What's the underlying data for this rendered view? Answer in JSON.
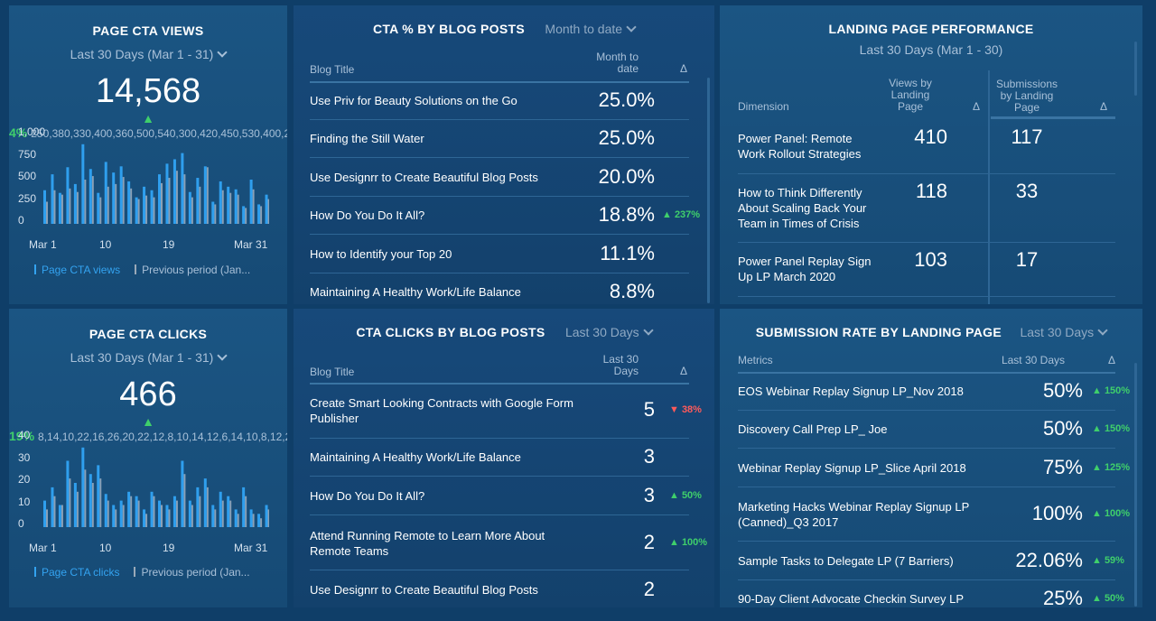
{
  "colors": {
    "bg": "#0f3e68",
    "panel": "#1b5583",
    "accent": "#33a3f0",
    "up": "#3fcf6b",
    "down": "#ff5a5a",
    "muted": "#a8c0d8"
  },
  "views": {
    "title": "PAGE CTA VIEWS",
    "period": "Last 30 Days (Mar 1 - 31)",
    "value": "14,568",
    "change": "▲ 4%",
    "previous": [
      250,
      380,
      330,
      400,
      360,
      500,
      540,
      300,
      420,
      450,
      530,
      400,
      280,
      320,
      300,
      460,
      520,
      600,
      560,
      300,
      420,
      640,
      220,
      380,
      350,
      330,
      180,
      390,
      200,
      280
    ],
    "y_ticks": [
      "1,000",
      "750",
      "500",
      "250",
      "0"
    ],
    "x_ticks": [
      "Mar 1",
      "10",
      "19",
      "Mar 31"
    ],
    "legend_current": "Page CTA views",
    "legend_previous": "Previous period (Jan...",
    "ymax": 1000,
    "current": [
      380,
      560,
      350,
      640,
      450,
      900,
      620,
      350,
      700,
      580,
      650,
      480,
      300,
      420,
      380,
      560,
      680,
      730,
      800,
      360,
      520,
      650,
      250,
      480,
      420,
      390,
      200,
      500,
      220,
      330
    ]
  },
  "clicks": {
    "title": "PAGE CTA CLICKS",
    "period": "Last 30 Days (Mar 1 - 31)",
    "value": "466",
    "change": "▲ 19%",
    "previous": [
      8,
      14,
      10,
      22,
      16,
      26,
      20,
      22,
      12,
      8,
      10,
      14,
      12,
      6,
      14,
      10,
      8,
      12,
      24,
      10,
      14,
      18,
      8,
      12,
      12,
      6,
      14,
      6,
      4,
      8
    ],
    "y_ticks": [
      "40",
      "30",
      "20",
      "10",
      "0"
    ],
    "x_ticks": [
      "Mar 1",
      "10",
      "19",
      "Mar 31"
    ],
    "legend_current": "Page CTA clicks",
    "legend_previous": "Previous period (Jan...",
    "ymax": 40,
    "current": [
      12,
      18,
      10,
      30,
      20,
      36,
      24,
      28,
      15,
      10,
      12,
      16,
      14,
      8,
      16,
      12,
      10,
      14,
      30,
      12,
      18,
      22,
      10,
      16,
      14,
      8,
      18,
      8,
      6,
      10
    ]
  },
  "cta_pct": {
    "title": "CTA % BY BLOG POSTS",
    "period": "Month to date",
    "col_title": "Blog Title",
    "col_value": "Month to date",
    "col_delta": "Δ",
    "rows": [
      {
        "title": "Use Priv for Beauty Solutions on the Go",
        "value": "25.0%",
        "delta": "",
        "dir": ""
      },
      {
        "title": "Finding the Still Water",
        "value": "25.0%",
        "delta": "",
        "dir": ""
      },
      {
        "title": "Use Designrr to Create Beautiful Blog Posts",
        "value": "20.0%",
        "delta": "",
        "dir": ""
      },
      {
        "title": "How Do You Do It All?",
        "value": "18.8%",
        "delta": "▲ 237%",
        "dir": "up"
      },
      {
        "title": "How to Identify your Top 20",
        "value": "11.1%",
        "delta": "",
        "dir": ""
      },
      {
        "title": "Maintaining A Healthy Work/Life Balance",
        "value": "8.8%",
        "delta": "",
        "dir": ""
      }
    ]
  },
  "cta_clicks": {
    "title": "CTA CLICKS BY BLOG POSTS",
    "period": "Last 30 Days",
    "col_title": "Blog Title",
    "col_value": "Last 30 Days",
    "col_delta": "Δ",
    "rows": [
      {
        "title": "Create Smart Looking Contracts with Google Form Publisher",
        "value": "5",
        "delta": "▼ 38%",
        "dir": "down"
      },
      {
        "title": "Maintaining A Healthy Work/Life Balance",
        "value": "3",
        "delta": "",
        "dir": ""
      },
      {
        "title": "How Do You Do It All?",
        "value": "3",
        "delta": "▲ 50%",
        "dir": "up"
      },
      {
        "title": "Attend Running Remote to Learn More About Remote Teams",
        "value": "2",
        "delta": "▲ 100%",
        "dir": "up"
      },
      {
        "title": "Use Designrr to Create Beautiful Blog Posts",
        "value": "2",
        "delta": "",
        "dir": ""
      }
    ]
  },
  "landing": {
    "title": "LANDING PAGE PERFORMANCE",
    "period": "Last 30 Days (Mar 1 - 30)",
    "col_dim": "Dimension",
    "col_views": "Views by Landing Page",
    "col_subs": "Submissions by Landing Page",
    "col_delta": "Δ",
    "rows": [
      {
        "title": "Power Panel: Remote Work Rollout Strategies",
        "views": "410",
        "subs": "117"
      },
      {
        "title": "How to Think Differently About Scaling Back Your Team in Times of Crisis",
        "views": "118",
        "subs": "33"
      },
      {
        "title": "Power Panel Replay Sign Up LP March 2020",
        "views": "103",
        "subs": "17"
      }
    ]
  },
  "subrate": {
    "title": "SUBMISSION RATE BY LANDING PAGE",
    "period": "Last 30 Days",
    "col_title": "Metrics",
    "col_value": "Last 30 Days",
    "col_delta": "Δ",
    "rows": [
      {
        "title": "EOS Webinar Replay Signup LP_Nov 2018",
        "value": "50%",
        "delta": "▲ 150%",
        "dir": "up"
      },
      {
        "title": "Discovery Call Prep LP_ Joe",
        "value": "50%",
        "delta": "▲ 150%",
        "dir": "up"
      },
      {
        "title": "Webinar Replay Signup LP_Slice April 2018",
        "value": "75%",
        "delta": "▲ 125%",
        "dir": "up"
      },
      {
        "title": "Marketing Hacks Webinar Replay Signup LP (Canned)_Q3 2017",
        "value": "100%",
        "delta": "▲ 100%",
        "dir": "up"
      },
      {
        "title": "Sample Tasks to Delegate LP (7 Barriers)",
        "value": "22.06%",
        "delta": "▲ 59%",
        "dir": "up"
      },
      {
        "title": "90-Day Client Advocate Checkin Survey LP",
        "value": "25%",
        "delta": "▲ 50%",
        "dir": "up"
      }
    ]
  }
}
